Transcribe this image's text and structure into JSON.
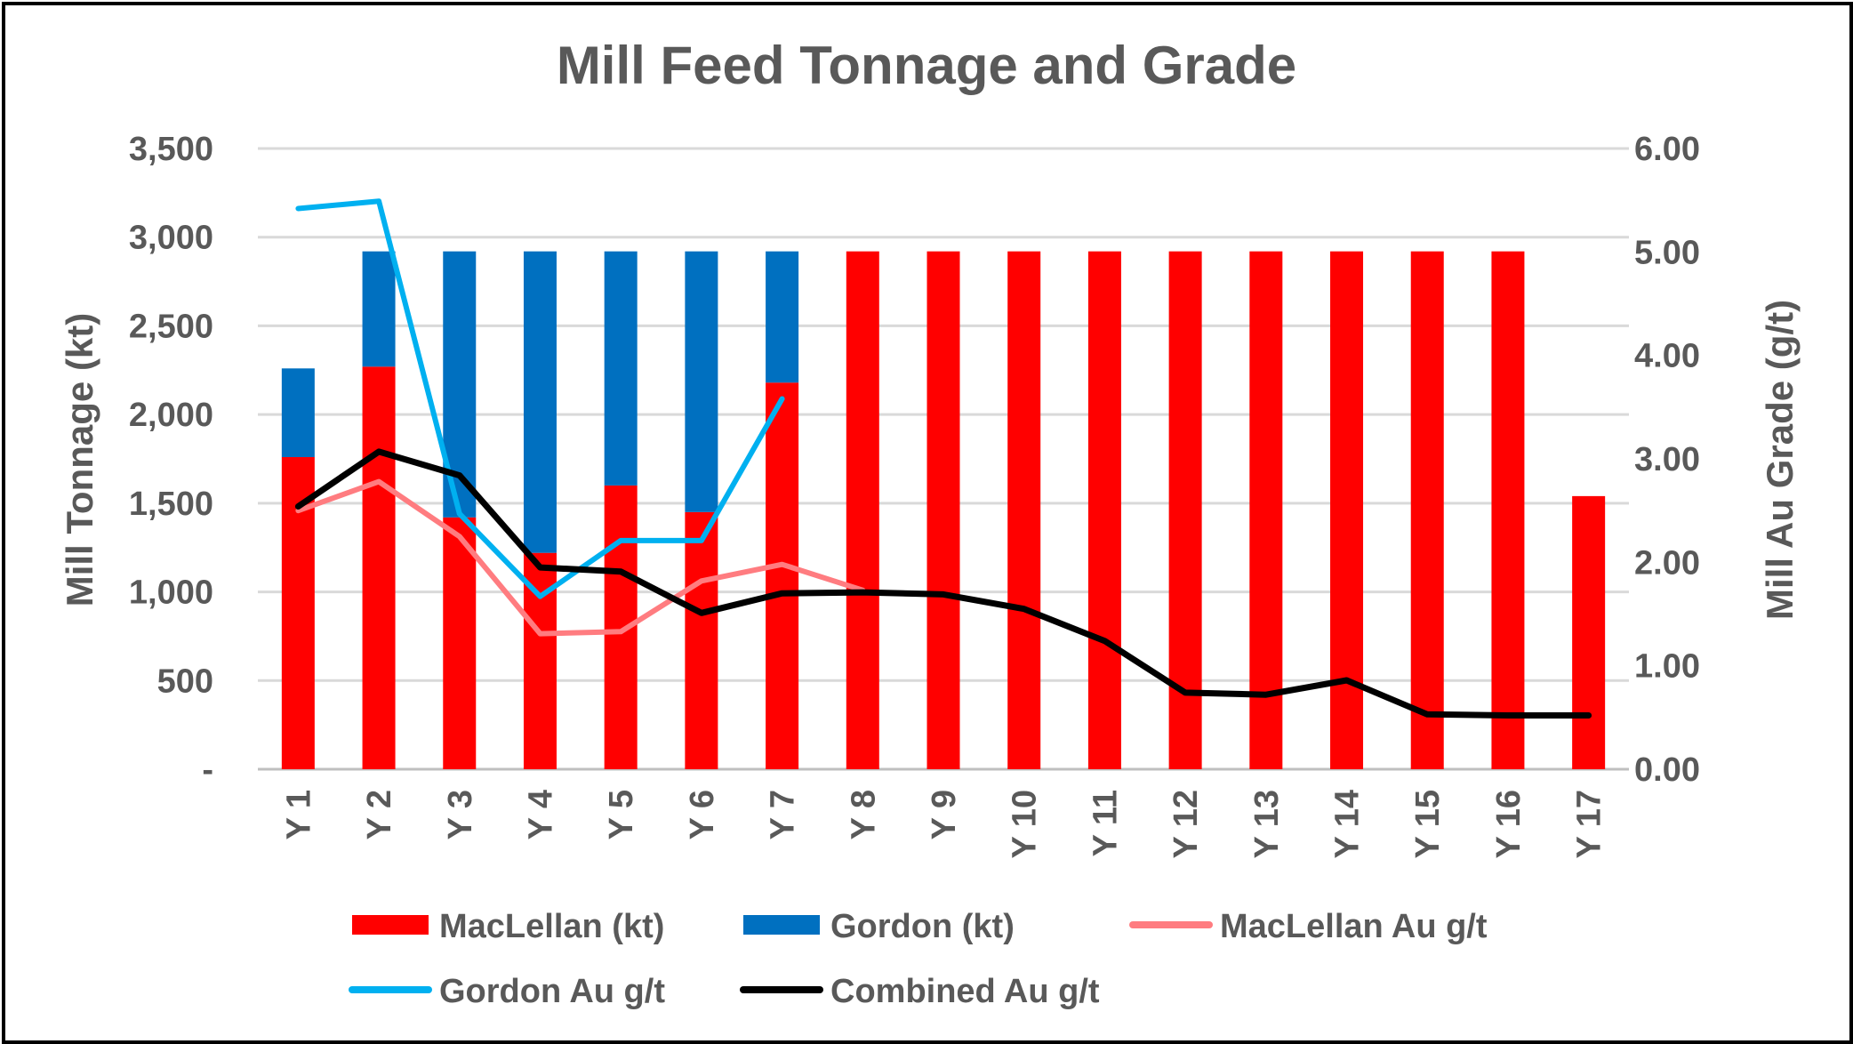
{
  "chart_data": {
    "type": "bar",
    "title": "Mill Feed Tonnage and Grade",
    "categories": [
      "Y 1",
      "Y 2",
      "Y 3",
      "Y 4",
      "Y 5",
      "Y 6",
      "Y 7",
      "Y 8",
      "Y 9",
      "Y 10",
      "Y 11",
      "Y 12",
      "Y 13",
      "Y 14",
      "Y 15",
      "Y 16",
      "Y 17"
    ],
    "ylabel": "Mill Tonnage (kt)",
    "y2label": "Mill Au Grade (g/t)",
    "ylim": [
      0,
      3500
    ],
    "y2lim": [
      0,
      6
    ],
    "y_ticks": [
      "-",
      "500",
      "1,000",
      "1,500",
      "2,000",
      "2,500",
      "3,000",
      "3,500"
    ],
    "y2_ticks": [
      "0.00",
      "1.00",
      "2.00",
      "3.00",
      "4.00",
      "5.00",
      "6.00"
    ],
    "grid": true,
    "legend_position": "bottom",
    "bar_series": [
      {
        "name": "MacLellan (kt)",
        "color": "#ff0000",
        "values": [
          1760,
          2270,
          1420,
          1220,
          1600,
          1450,
          2180,
          2920,
          2920,
          2920,
          2920,
          2920,
          2920,
          2920,
          2920,
          2920,
          1540
        ]
      },
      {
        "name": "Gordon (kt)",
        "color": "#0070c0",
        "values": [
          500,
          650,
          1500,
          1700,
          1320,
          1470,
          740,
          0,
          0,
          0,
          0,
          0,
          0,
          0,
          0,
          0,
          0
        ]
      }
    ],
    "line_series": [
      {
        "name": "MacLellan Au g/t",
        "color": "#ff7c80",
        "values": [
          2.5,
          2.78,
          2.25,
          1.31,
          1.33,
          1.82,
          1.98,
          1.73,
          null,
          null,
          null,
          null,
          null,
          null,
          null,
          null,
          null
        ]
      },
      {
        "name": "Gordon Au g/t",
        "color": "#00b0f0",
        "values": [
          5.42,
          5.49,
          2.47,
          1.67,
          2.21,
          2.21,
          3.58,
          null,
          null,
          null,
          null,
          null,
          null,
          null,
          null,
          null,
          null
        ]
      },
      {
        "name": "Combined Au g/t",
        "color": "#000000",
        "values": [
          2.54,
          3.07,
          2.84,
          1.95,
          1.91,
          1.51,
          1.7,
          1.71,
          1.69,
          1.55,
          1.24,
          0.74,
          0.72,
          0.86,
          0.53,
          0.52,
          0.52
        ]
      }
    ]
  }
}
